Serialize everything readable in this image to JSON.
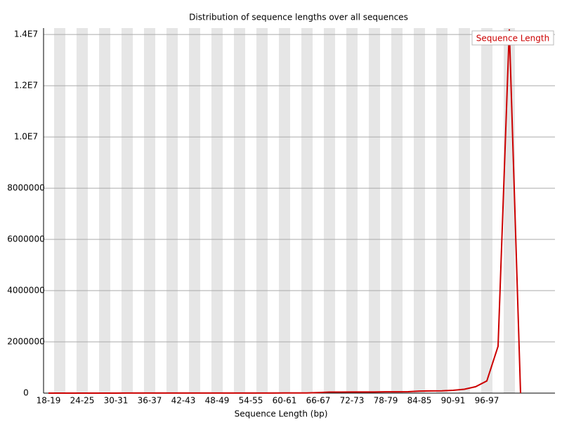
{
  "chart_data": {
    "type": "line",
    "title": "Distribution of sequence lengths over all sequences",
    "x_label": "Sequence Length (bp)",
    "categories": [
      "18-19",
      null,
      null,
      "24-25",
      null,
      null,
      "30-31",
      null,
      null,
      "36-37",
      null,
      null,
      "42-43",
      null,
      null,
      "48-49",
      null,
      null,
      "54-55",
      null,
      null,
      "60-61",
      null,
      null,
      "66-67",
      null,
      null,
      "72-73",
      null,
      null,
      "78-79",
      null,
      null,
      "84-85",
      null,
      null,
      "90-91",
      null,
      null,
      "96-97",
      null,
      null,
      null
    ],
    "series": [
      {
        "name": "Sequence Length",
        "color": "#cc0000",
        "values": [
          1000,
          1000,
          1000,
          1000,
          1500,
          1500,
          1500,
          2000,
          2000,
          2000,
          2500,
          2500,
          3000,
          3000,
          3500,
          3500,
          4000,
          4000,
          4500,
          5000,
          5000,
          6000,
          7000,
          8000,
          20000,
          40000,
          40000,
          45000,
          45000,
          45000,
          50000,
          50000,
          55000,
          80000,
          85000,
          90000,
          110000,
          150000,
          250000,
          475000,
          1830000,
          14200000,
          0
        ]
      }
    ],
    "ylim": [
      0,
      14250000
    ],
    "yticks": [
      0,
      2000000,
      4000000,
      6000000,
      8000000,
      {
        "value": 10000000,
        "label": "1.0E7"
      },
      {
        "value": 12000000,
        "label": "1.2E7"
      },
      {
        "value": 14000000,
        "label": "1.4E7"
      }
    ],
    "grid": true,
    "legend": "top-right"
  }
}
